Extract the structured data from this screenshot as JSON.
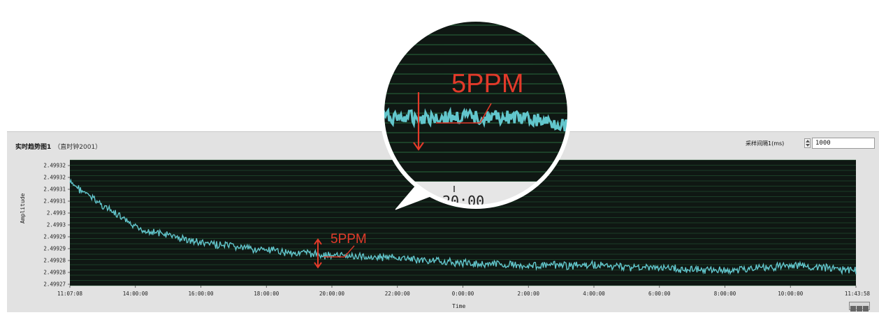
{
  "chart_data": {
    "type": "line",
    "title": "实时趋势图1",
    "subtitle": "（直时钟2001）",
    "xlabel": "Time",
    "ylabel": "Amplitude",
    "x_ticks": [
      "11:07:08",
      "14:00:00",
      "16:00:00",
      "18:00:00",
      "20:00:00",
      "22:00:00",
      "0:00:00",
      "2:00:00",
      "4:00:00",
      "6:00:00",
      "8:00:00",
      "10:00:00",
      "11:43:58"
    ],
    "y_ticks": [
      "2.49932",
      "2.49932",
      "2.49931",
      "2.49931",
      "2.4993",
      "2.4993",
      "2.49929",
      "2.49929",
      "2.49928",
      "2.49928",
      "2.49927"
    ],
    "series": [
      {
        "x": [
          "11:07:08",
          "14:00:00",
          "16:00:00",
          "18:00:00",
          "20:00:00",
          "22:00:00",
          "0:00:00",
          "2:00:00",
          "4:00:00",
          "6:00:00",
          "8:00:00",
          "10:00:00",
          "11:43:58"
        ],
        "values": [
          2.499311,
          2.499293,
          2.499287,
          2.499284,
          2.499282,
          2.499281,
          2.499279,
          2.499278,
          2.499278,
          2.499277,
          2.499276,
          2.499278,
          2.499276
        ]
      }
    ],
    "ylim": [
      2.49927,
      2.49932
    ],
    "grid": true,
    "colors": {
      "background": "#0f1713",
      "trace": "#62c6cc",
      "grid": "#2f7a47",
      "annotation": "#e23a2a"
    },
    "annotations": [
      {
        "text": "5PPM",
        "at_x": "20:00:00"
      }
    ]
  },
  "controls": {
    "interval_label": "采样间隔1(ms)",
    "interval_value": "1000"
  },
  "zoom": {
    "annotation_text": "5PPM",
    "bottom_text": "20:00"
  }
}
